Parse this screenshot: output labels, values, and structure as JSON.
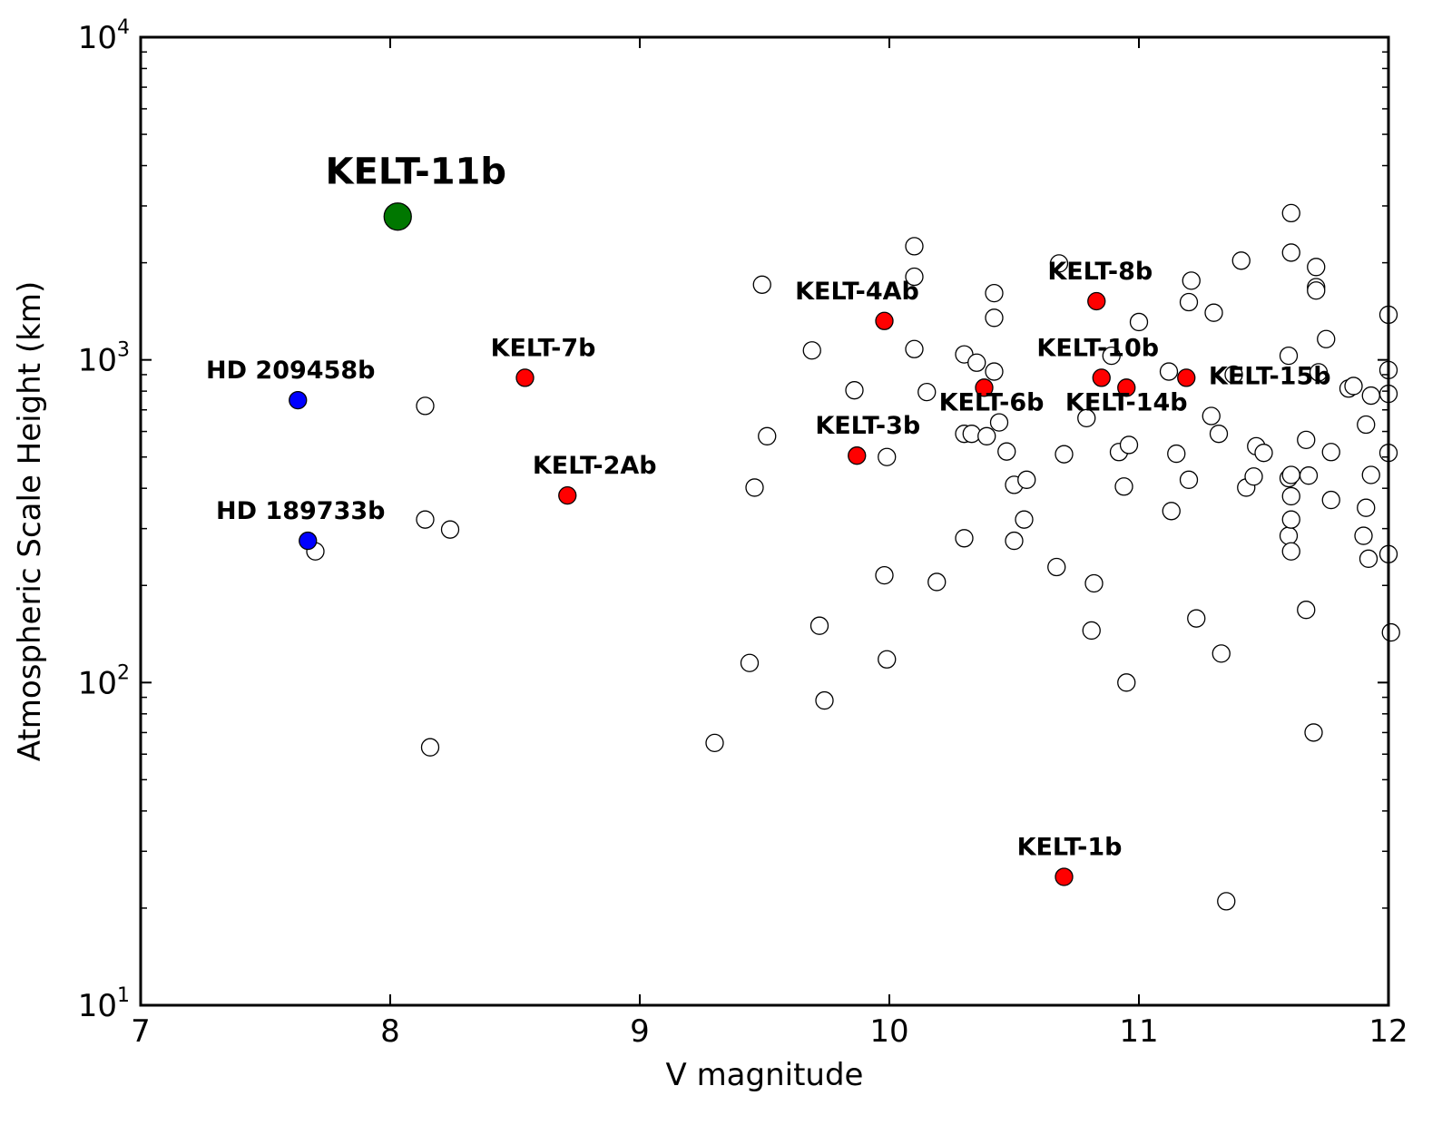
{
  "chart_data": {
    "type": "scatter",
    "title": "",
    "xlabel": "V magnitude",
    "ylabel": "Atmospheric Scale Height (km)",
    "xlim": [
      7,
      12
    ],
    "ylim": [
      10,
      10000
    ],
    "yscale": "log",
    "grid": false,
    "x_ticks": [
      "7",
      "8",
      "9",
      "10",
      "11",
      "12"
    ],
    "y_ticks": [
      {
        "base": "10",
        "exp": "1"
      },
      {
        "base": "10",
        "exp": "2"
      },
      {
        "base": "10",
        "exp": "3"
      },
      {
        "base": "10",
        "exp": "4"
      }
    ],
    "colors": {
      "background_planets": "#ffffff",
      "kelt": "#ff0000",
      "hd": "#0000ff",
      "kelt11b": "#007700"
    },
    "series": [
      {
        "kind": "background",
        "points": [
          [
            7.7,
            255
          ],
          [
            8.14,
            720
          ],
          [
            8.14,
            320
          ],
          [
            8.16,
            63
          ],
          [
            8.24,
            298
          ],
          [
            9.3,
            65
          ],
          [
            9.44,
            115
          ],
          [
            9.46,
            402
          ],
          [
            9.49,
            1710
          ],
          [
            9.51,
            580
          ],
          [
            9.69,
            1070
          ],
          [
            9.72,
            150
          ],
          [
            9.74,
            88
          ],
          [
            9.86,
            805
          ],
          [
            9.98,
            215
          ],
          [
            9.99,
            500
          ],
          [
            9.99,
            118
          ],
          [
            10.1,
            2250
          ],
          [
            10.1,
            1810
          ],
          [
            10.1,
            1080
          ],
          [
            10.15,
            795
          ],
          [
            10.19,
            205
          ],
          [
            10.3,
            1040
          ],
          [
            10.3,
            590
          ],
          [
            10.3,
            280
          ],
          [
            10.33,
            590
          ],
          [
            10.35,
            980
          ],
          [
            10.39,
            580
          ],
          [
            10.42,
            1610
          ],
          [
            10.42,
            1350
          ],
          [
            10.42,
            920
          ],
          [
            10.44,
            640
          ],
          [
            10.47,
            520
          ],
          [
            10.5,
            410
          ],
          [
            10.5,
            275
          ],
          [
            10.54,
            320
          ],
          [
            10.55,
            425
          ],
          [
            10.67,
            228
          ],
          [
            10.68,
            1990
          ],
          [
            10.7,
            510
          ],
          [
            10.79,
            660
          ],
          [
            10.81,
            145
          ],
          [
            10.82,
            203
          ],
          [
            10.89,
            1030
          ],
          [
            10.92,
            518
          ],
          [
            10.94,
            405
          ],
          [
            10.95,
            100
          ],
          [
            10.96,
            545
          ],
          [
            11.0,
            1310
          ],
          [
            11.12,
            920
          ],
          [
            11.13,
            340
          ],
          [
            11.15,
            512
          ],
          [
            11.2,
            1510
          ],
          [
            11.2,
            425
          ],
          [
            11.21,
            1760
          ],
          [
            11.23,
            158
          ],
          [
            11.29,
            670
          ],
          [
            11.3,
            1400
          ],
          [
            11.32,
            590
          ],
          [
            11.33,
            123
          ],
          [
            11.35,
            21
          ],
          [
            11.38,
            900
          ],
          [
            11.41,
            2030
          ],
          [
            11.43,
            402
          ],
          [
            11.46,
            435
          ],
          [
            11.47,
            540
          ],
          [
            11.5,
            515
          ],
          [
            11.6,
            1030
          ],
          [
            11.6,
            430
          ],
          [
            11.6,
            285
          ],
          [
            11.61,
            2850
          ],
          [
            11.61,
            2150
          ],
          [
            11.61,
            440
          ],
          [
            11.61,
            378
          ],
          [
            11.61,
            320
          ],
          [
            11.61,
            255
          ],
          [
            11.67,
            168
          ],
          [
            11.67,
            565
          ],
          [
            11.68,
            438
          ],
          [
            11.7,
            70
          ],
          [
            11.71,
            1940
          ],
          [
            11.71,
            1680
          ],
          [
            11.71,
            1640
          ],
          [
            11.72,
            915
          ],
          [
            11.75,
            1160
          ],
          [
            11.77,
            368
          ],
          [
            11.77,
            518
          ],
          [
            11.84,
            815
          ],
          [
            11.86,
            830
          ],
          [
            11.9,
            285
          ],
          [
            11.91,
            348
          ],
          [
            11.91,
            630
          ],
          [
            11.92,
            242
          ],
          [
            11.93,
            440
          ],
          [
            11.93,
            775
          ],
          [
            12.0,
            1380
          ],
          [
            12.0,
            930
          ],
          [
            12.0,
            785
          ],
          [
            12.0,
            515
          ],
          [
            12.0,
            250
          ],
          [
            12.01,
            143
          ]
        ]
      },
      {
        "kind": "kelt",
        "points": [
          {
            "name": "KELT-7b",
            "x": 8.54,
            "y": 880
          },
          {
            "name": "KELT-2Ab",
            "x": 8.71,
            "y": 380
          },
          {
            "name": "KELT-4Ab",
            "x": 9.98,
            "y": 1320
          },
          {
            "name": "KELT-3b",
            "x": 9.87,
            "y": 505
          },
          {
            "name": "KELT-6b",
            "x": 10.38,
            "y": 820
          },
          {
            "name": "KELT-8b",
            "x": 10.83,
            "y": 1520
          },
          {
            "name": "KELT-10b",
            "x": 10.85,
            "y": 880
          },
          {
            "name": "KELT-14b",
            "x": 10.95,
            "y": 820
          },
          {
            "name": "KELT-15b",
            "x": 11.19,
            "y": 880
          },
          {
            "name": "KELT-1b",
            "x": 10.7,
            "y": 25
          }
        ]
      },
      {
        "kind": "hd",
        "points": [
          {
            "name": "HD 209458b",
            "x": 7.63,
            "y": 750
          },
          {
            "name": "HD 189733b",
            "x": 7.67,
            "y": 275
          }
        ]
      },
      {
        "kind": "highlight",
        "points": [
          {
            "name": "KELT-11b",
            "x": 8.03,
            "y": 2780
          }
        ]
      }
    ]
  }
}
